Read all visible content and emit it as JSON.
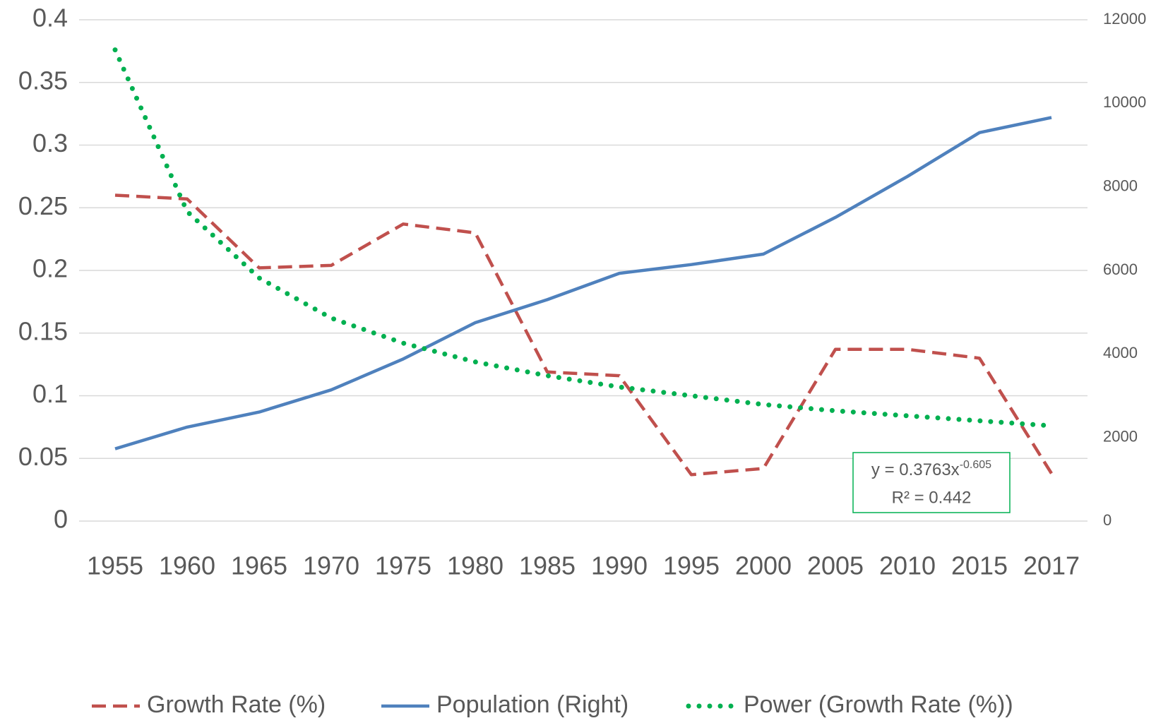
{
  "chart_data": {
    "type": "line",
    "categories": [
      "1955",
      "1960",
      "1965",
      "1970",
      "1975",
      "1980",
      "1985",
      "1990",
      "1995",
      "2000",
      "2005",
      "2010",
      "2015",
      "2017"
    ],
    "series": [
      {
        "name": "Growth Rate (%)",
        "color": "#c0504d",
        "style": "dashed",
        "values": [
          0.26,
          0.257,
          0.202,
          0.204,
          0.237,
          0.23,
          0.119,
          0.116,
          0.037,
          0.042,
          0.137,
          0.137,
          0.13,
          0.038
        ]
      },
      {
        "name": "Population (Right)",
        "color": "#4f81bd",
        "style": "solid",
        "axis": "y2",
        "values": [
          1730,
          2250,
          2610,
          3140,
          3880,
          4750,
          5300,
          5930,
          6140,
          6390,
          7270,
          8250,
          9300,
          9660
        ]
      },
      {
        "name": "Power (Growth Rate (%))",
        "color": "#00b050",
        "style": "dotted",
        "values": [
          0.376,
          0.247,
          0.194,
          0.162,
          0.142,
          0.127,
          0.116,
          0.107,
          0.1,
          0.093,
          0.088,
          0.084,
          0.08,
          0.076
        ]
      }
    ],
    "ylim": [
      0,
      0.4
    ],
    "yticks": [
      0,
      0.05,
      0.1,
      0.15,
      0.2,
      0.25,
      0.3,
      0.35,
      0.4
    ],
    "y2lim": [
      0,
      12000
    ],
    "y2ticks": [
      0,
      2000,
      4000,
      6000,
      8000,
      10000,
      12000
    ],
    "grid": true,
    "legend": "bottom",
    "annotation": {
      "equation": "y = 0.3763x",
      "exponent": "-0.605",
      "r_squared": "R² = 0.442"
    }
  }
}
